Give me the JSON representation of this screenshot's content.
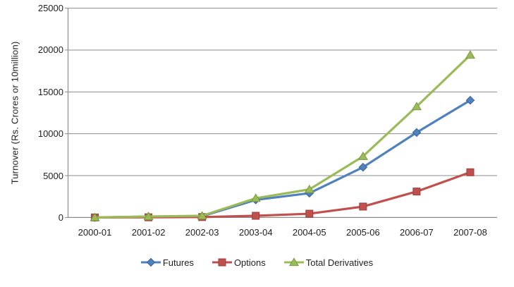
{
  "chart_data": {
    "type": "line",
    "title": "",
    "xlabel": "",
    "ylabel": "Turnover (Rs. Crores or 10million)",
    "categories": [
      "2000-01",
      "2001-02",
      "2002-03",
      "2003-04",
      "2004-05",
      "2005-06",
      "2006-07",
      "2007-08"
    ],
    "ylim": [
      0,
      25000
    ],
    "yticks": [
      0,
      5000,
      10000,
      15000,
      20000,
      25000
    ],
    "grid": true,
    "legend_position": "bottom",
    "series": [
      {
        "name": "Futures",
        "marker": "diamond",
        "color": "#4F81BD",
        "marker_border": "#3A6497",
        "values": [
          0,
          100,
          150,
          2100,
          2900,
          6000,
          10150,
          14000
        ]
      },
      {
        "name": "Options",
        "marker": "square",
        "color": "#C0504D",
        "marker_border": "#9A3E3B",
        "values": [
          0,
          20,
          50,
          200,
          450,
          1300,
          3100,
          5400
        ]
      },
      {
        "name": "Total Derivatives",
        "marker": "triangle",
        "color": "#9BBB59",
        "marker_border": "#7A9A40",
        "values": [
          0,
          120,
          200,
          2300,
          3350,
          7300,
          13250,
          19400
        ]
      }
    ]
  },
  "styles": {
    "background": "#ffffff",
    "gridline_color": "#8d8d8d",
    "axis_color": "#8d8d8d",
    "text_color": "#1f1f1f"
  }
}
